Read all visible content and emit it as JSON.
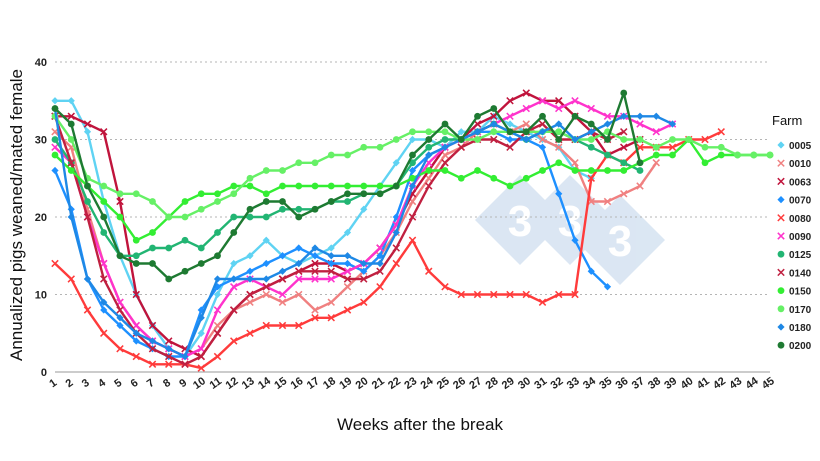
{
  "chart_data": {
    "type": "line",
    "xlabel": "Weeks after the break",
    "ylabel": "Annualized pigs weaned/mated female",
    "legend_title": "Farm",
    "legend_position": "right",
    "xlim": [
      1,
      45
    ],
    "ylim": [
      0,
      40
    ],
    "yticks": [
      0,
      10,
      20,
      30,
      40
    ],
    "grid": "horizontal dotted",
    "x": [
      1,
      2,
      3,
      4,
      5,
      6,
      7,
      8,
      9,
      10,
      11,
      12,
      13,
      14,
      15,
      16,
      17,
      18,
      19,
      20,
      21,
      22,
      23,
      24,
      25,
      26,
      27,
      28,
      29,
      30,
      31,
      32,
      33,
      34,
      35,
      36,
      37,
      38,
      39,
      40,
      41,
      42,
      43,
      44,
      45
    ],
    "series": [
      {
        "name": "0005",
        "color": "#5fd3f3",
        "marker": "diamond",
        "values": [
          35,
          35,
          31,
          22,
          15,
          10,
          6,
          3,
          2,
          5,
          10,
          14,
          15,
          17,
          15,
          14,
          15,
          16,
          18,
          21,
          24,
          27,
          30,
          30,
          29,
          31,
          31,
          33,
          32,
          31,
          30,
          29,
          26,
          25,
          null,
          null,
          null,
          null,
          null,
          null,
          null,
          null,
          null,
          null,
          null
        ]
      },
      {
        "name": "0010",
        "color": "#f08080",
        "marker": "x",
        "values": [
          31,
          29,
          21,
          14,
          9,
          6,
          4,
          3,
          2,
          3,
          6,
          8,
          9,
          10,
          9,
          10,
          8,
          9,
          11,
          13,
          15,
          18,
          22,
          25,
          28,
          29,
          31,
          32,
          31,
          32,
          30,
          29,
          27,
          22,
          22,
          23,
          24,
          27,
          null,
          null,
          null,
          null,
          null,
          null,
          null
        ]
      },
      {
        "name": "0063",
        "color": "#c0143c",
        "marker": "x",
        "values": [
          33,
          33,
          32,
          31,
          22,
          10,
          6,
          4,
          3,
          2,
          5,
          8,
          10,
          11,
          12,
          13,
          14,
          14,
          13,
          14,
          16,
          19,
          23,
          26,
          29,
          30,
          32,
          33,
          35,
          36,
          35,
          35,
          33,
          31,
          28,
          29,
          30,
          null,
          null,
          null,
          null,
          null,
          null,
          null,
          null
        ]
      },
      {
        "name": "0070",
        "color": "#1e90ff",
        "marker": "diamond",
        "values": [
          26,
          21,
          12,
          8,
          6,
          4,
          3,
          2,
          2,
          8,
          11,
          12,
          13,
          14,
          15,
          16,
          15,
          14,
          14,
          13,
          15,
          20,
          26,
          28,
          29,
          30,
          31,
          31,
          30,
          30,
          29,
          23,
          17,
          13,
          11,
          null,
          null,
          null,
          null,
          null,
          null,
          null,
          null,
          null,
          null
        ]
      },
      {
        "name": "0080",
        "color": "#ff3b3b",
        "marker": "x",
        "values": [
          14,
          12,
          8,
          5,
          3,
          2,
          1,
          1,
          1,
          0.5,
          2,
          4,
          5,
          6,
          6,
          6,
          7,
          7,
          8,
          9,
          11,
          14,
          17,
          13,
          11,
          10,
          10,
          10,
          10,
          10,
          9,
          10,
          10,
          25,
          28,
          27,
          29,
          29,
          29,
          30,
          30,
          31,
          null,
          null,
          null
        ]
      },
      {
        "name": "0090",
        "color": "#ff33cc",
        "marker": "x",
        "values": [
          29,
          27,
          20,
          14,
          9,
          6,
          4,
          3,
          2,
          3,
          8,
          11,
          12,
          11,
          10,
          12,
          12,
          12,
          13,
          14,
          16,
          19,
          24,
          27,
          29,
          30,
          31,
          32,
          33,
          34,
          35,
          34,
          35,
          34,
          33,
          33,
          32,
          31,
          32,
          null,
          null,
          null,
          null,
          null,
          null
        ]
      },
      {
        "name": "0125",
        "color": "#22b573",
        "marker": "circle",
        "values": [
          30,
          27,
          22,
          18,
          15,
          15,
          16,
          16,
          17,
          16,
          18,
          20,
          20,
          20,
          21,
          21,
          21,
          22,
          22,
          23,
          23,
          24,
          27,
          29,
          30,
          30,
          31,
          32,
          31,
          30,
          31,
          31,
          30,
          29,
          28,
          27,
          26,
          null,
          null,
          null,
          null,
          null,
          null,
          null,
          null
        ]
      },
      {
        "name": "0140",
        "color": "#c02040",
        "marker": "x",
        "values": [
          33,
          27,
          20,
          12,
          8,
          5,
          3,
          2,
          1,
          2,
          5,
          8,
          10,
          11,
          12,
          13,
          13,
          13,
          12,
          12,
          13,
          16,
          20,
          24,
          27,
          29,
          30,
          30,
          29,
          31,
          32,
          30,
          30,
          31,
          30,
          31,
          null,
          null,
          null,
          null,
          null,
          null,
          null,
          null,
          null
        ]
      },
      {
        "name": "0150",
        "color": "#33ee33",
        "marker": "circle",
        "values": [
          28,
          26,
          24,
          22,
          20,
          17,
          18,
          20,
          22,
          23,
          23,
          24,
          24,
          23,
          24,
          24,
          24,
          24,
          24,
          24,
          24,
          24,
          25,
          26,
          26,
          25,
          26,
          25,
          24,
          25,
          26,
          27,
          26,
          26,
          26,
          26,
          27,
          28,
          28,
          30,
          27,
          28,
          28,
          28,
          28
        ]
      },
      {
        "name": "0170",
        "color": "#66f066",
        "marker": "circle",
        "values": [
          33,
          30,
          25,
          24,
          23,
          23,
          22,
          20,
          20,
          21,
          22,
          23,
          25,
          26,
          26,
          27,
          27,
          28,
          28,
          29,
          29,
          30,
          31,
          31,
          31,
          30,
          30,
          31,
          31,
          31,
          31,
          31,
          30,
          30,
          31,
          30,
          30,
          29,
          30,
          30,
          29,
          29,
          28,
          28,
          28
        ]
      },
      {
        "name": "0180",
        "color": "#1e88e5",
        "marker": "diamond",
        "values": [
          34,
          20,
          12,
          9,
          7,
          5,
          4,
          3,
          2,
          7,
          12,
          12,
          12,
          12,
          13,
          14,
          16,
          15,
          15,
          14,
          14,
          18,
          24,
          28,
          29,
          30,
          31,
          32,
          31,
          30,
          31,
          32,
          30,
          31,
          32,
          33,
          33,
          33,
          32,
          null,
          null,
          null,
          null,
          null,
          null
        ]
      },
      {
        "name": "0200",
        "color": "#1e7a32",
        "marker": "circle",
        "values": [
          34,
          32,
          24,
          20,
          15,
          14,
          14,
          12,
          13,
          14,
          15,
          18,
          21,
          22,
          22,
          20,
          21,
          22,
          23,
          23,
          23,
          24,
          28,
          30,
          32,
          30,
          33,
          34,
          31,
          31,
          33,
          30,
          33,
          32,
          30,
          36,
          27,
          null,
          null,
          null,
          null,
          null,
          null,
          null,
          null
        ]
      }
    ]
  },
  "watermark": "333"
}
